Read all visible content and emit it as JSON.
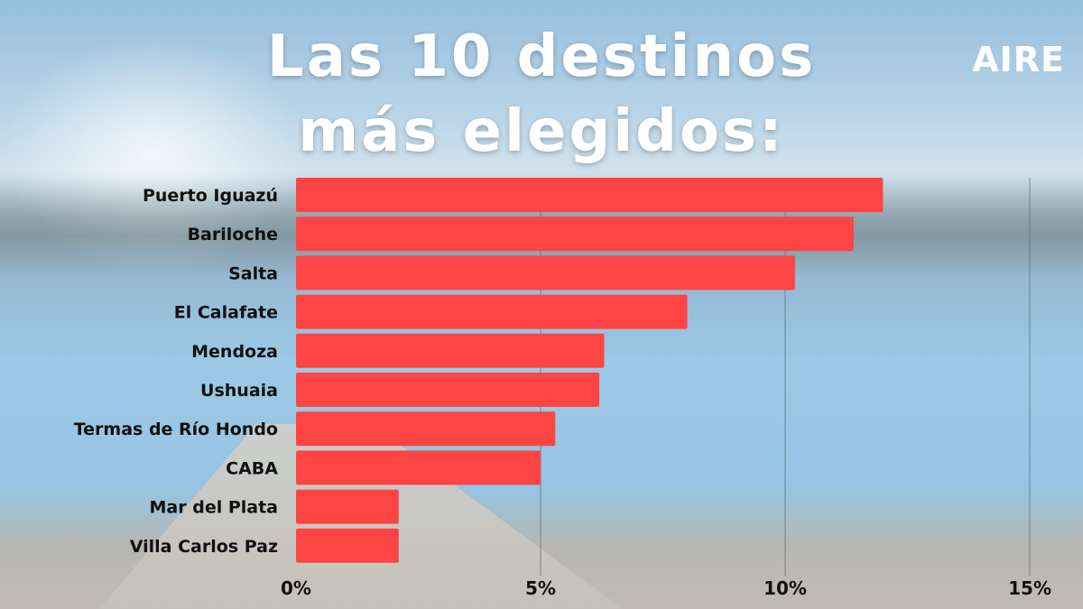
{
  "header": {
    "title_line1": "Las 10 destinos",
    "title_line2": "más elegidos:",
    "logo": "AIRE"
  },
  "colors": {
    "bar": "#ff4444",
    "text": "#111111",
    "title": "#ffffff",
    "grid": "#5a6b75"
  },
  "chart_data": {
    "type": "bar",
    "orientation": "horizontal",
    "title": "Las 10 destinos más elegidos:",
    "categories": [
      "Puerto Iguazú",
      "Bariloche",
      "Salta",
      "El Calafate",
      "Mendoza",
      "Ushuaia",
      "Termas de Río Hondo",
      "CABA",
      "Mar del Plata",
      "Villa Carlos Paz"
    ],
    "values": [
      12.0,
      11.4,
      10.2,
      8.0,
      6.3,
      6.2,
      5.3,
      5.0,
      2.1,
      2.1
    ],
    "unit": "%",
    "xlim": [
      0,
      15
    ],
    "xticks": [
      0,
      5,
      10,
      15
    ],
    "xtick_labels": [
      "0%",
      "5%",
      "10%",
      "15%"
    ],
    "grid": "vertical",
    "legend": "none"
  }
}
